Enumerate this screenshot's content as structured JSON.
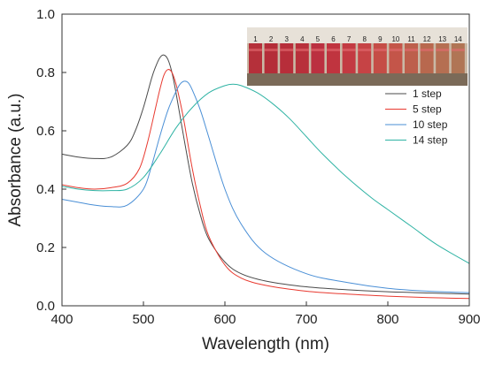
{
  "chart_data": {
    "type": "line",
    "title": "",
    "xlabel": "Wavelength (nm)",
    "ylabel": "Absorbance (a.u.)",
    "xlim": [
      400,
      900
    ],
    "ylim": [
      0.0,
      1.0
    ],
    "x_ticks": [
      "400",
      "500",
      "600",
      "700",
      "800",
      "900"
    ],
    "y_ticks": [
      "0.0",
      "0.2",
      "0.4",
      "0.6",
      "0.8",
      "1.0"
    ],
    "grid": false,
    "legend_position": "right, below inset photo",
    "inset": {
      "description": "photo of 14 vials with colloidal solutions",
      "vial_labels": [
        "1",
        "2",
        "3",
        "4",
        "5",
        "6",
        "7",
        "8",
        "9",
        "10",
        "11",
        "12",
        "13",
        "14"
      ]
    },
    "series": [
      {
        "name": "1 step",
        "color": "#4a4a4a",
        "x": [
          400,
          420,
          440,
          460,
          480,
          490,
          500,
          510,
          515,
          520,
          525,
          530,
          535,
          540,
          550,
          560,
          570,
          580,
          600,
          620,
          650,
          700,
          750,
          800,
          850,
          900
        ],
        "y": [
          0.52,
          0.51,
          0.505,
          0.51,
          0.55,
          0.6,
          0.68,
          0.78,
          0.82,
          0.85,
          0.86,
          0.845,
          0.8,
          0.73,
          0.57,
          0.42,
          0.31,
          0.23,
          0.15,
          0.11,
          0.085,
          0.065,
          0.055,
          0.048,
          0.044,
          0.04
        ]
      },
      {
        "name": "5 step",
        "color": "#e8392f",
        "x": [
          400,
          420,
          440,
          460,
          480,
          495,
          505,
          515,
          520,
          525,
          530,
          535,
          540,
          545,
          550,
          560,
          570,
          580,
          600,
          620,
          650,
          700,
          750,
          800,
          850,
          900
        ],
        "y": [
          0.415,
          0.405,
          0.4,
          0.405,
          0.42,
          0.47,
          0.56,
          0.68,
          0.74,
          0.79,
          0.81,
          0.8,
          0.76,
          0.7,
          0.63,
          0.47,
          0.34,
          0.24,
          0.14,
          0.095,
          0.07,
          0.05,
          0.04,
          0.033,
          0.028,
          0.025
        ]
      },
      {
        "name": "10 step",
        "color": "#4a8fd6",
        "x": [
          400,
          420,
          440,
          460,
          480,
          500,
          510,
          520,
          530,
          540,
          545,
          550,
          555,
          560,
          570,
          580,
          600,
          620,
          650,
          700,
          750,
          800,
          850,
          900
        ],
        "y": [
          0.365,
          0.355,
          0.345,
          0.34,
          0.345,
          0.4,
          0.48,
          0.58,
          0.67,
          0.735,
          0.76,
          0.77,
          0.765,
          0.74,
          0.67,
          0.58,
          0.4,
          0.28,
          0.18,
          0.11,
          0.08,
          0.06,
          0.05,
          0.045
        ]
      },
      {
        "name": "14 step",
        "color": "#2fb3a4",
        "x": [
          400,
          420,
          440,
          460,
          480,
          500,
          520,
          540,
          560,
          580,
          600,
          610,
          620,
          640,
          660,
          680,
          700,
          720,
          750,
          780,
          800,
          830,
          860,
          900
        ],
        "y": [
          0.41,
          0.4,
          0.395,
          0.395,
          0.4,
          0.44,
          0.52,
          0.61,
          0.68,
          0.73,
          0.755,
          0.76,
          0.755,
          0.73,
          0.69,
          0.64,
          0.58,
          0.52,
          0.44,
          0.37,
          0.33,
          0.27,
          0.21,
          0.145
        ]
      }
    ]
  }
}
